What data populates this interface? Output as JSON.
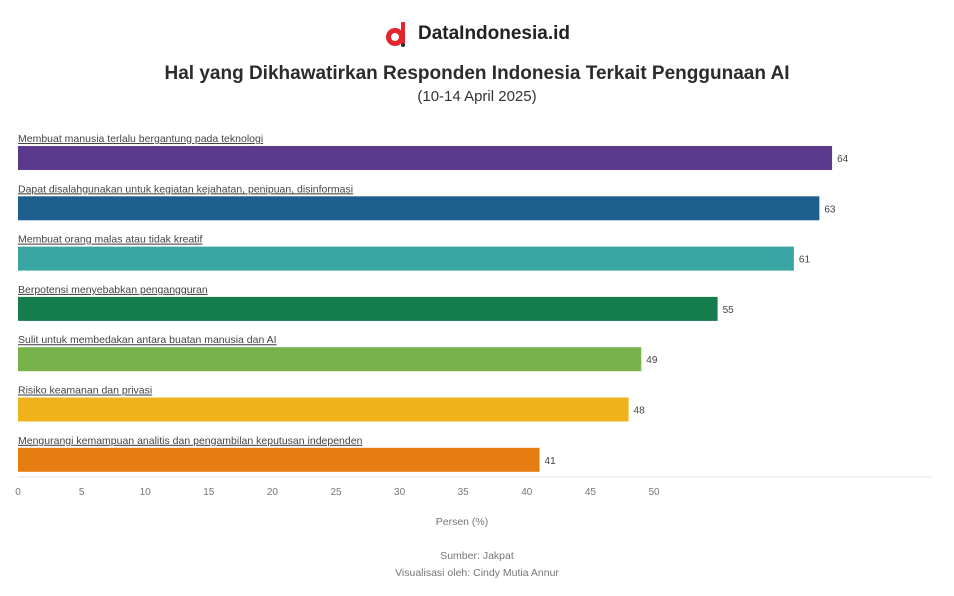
{
  "brand": {
    "name": "DataIndonesia.id",
    "logo_color": "#e3262d"
  },
  "title": "Hal yang Dikhawatirkan Responden Indonesia Terkait Penggunaan AI",
  "subtitle": "(10-14 April 2025)",
  "chart_data": {
    "type": "bar",
    "orientation": "horizontal",
    "categories": [
      "Membuat manusia terlalu bergantung pada teknologi",
      "Dapat disalahgunakan untuk kegiatan kejahatan, penipuan, disinformasi",
      "Membuat orang malas atau tidak kreatif",
      "Berpotensi menyebabkan pengangguran",
      "Sulit untuk membedakan antara buatan manusia dan AI",
      "Risiko keamanan dan privasi",
      "Mengurangi kemampuan analitis dan pengambilan keputusan independen"
    ],
    "values": [
      64,
      63,
      61,
      55,
      49,
      48,
      41
    ],
    "value_labels": [
      "64",
      "63",
      "61",
      "55",
      "49",
      "48",
      "41"
    ],
    "colors": [
      "#5b3a8e",
      "#1d5f8c",
      "#3aa6a3",
      "#147c4d",
      "#78b24a",
      "#f0b21a",
      "#e57d10"
    ],
    "xlim": [
      0,
      72
    ],
    "xticks": [
      0,
      5,
      10,
      15,
      20,
      25,
      30,
      35,
      40,
      45,
      50
    ],
    "xlabel": "Persen (%)",
    "grid": false
  },
  "footer": {
    "source": "Sumber: Jakpat",
    "credit": "Visualisasi oleh: Cindy Mutia Annur"
  }
}
